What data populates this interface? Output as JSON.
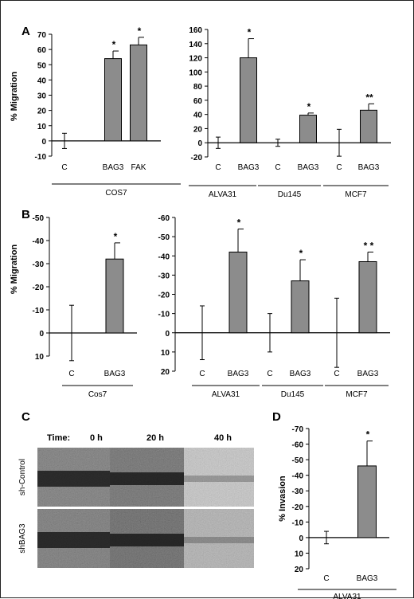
{
  "panel_labels": [
    "A",
    "B",
    "C",
    "D"
  ],
  "colors": {
    "bar": "#8c8c8c",
    "stroke": "#000000",
    "background": "#ffffff"
  },
  "chart_data": [
    {
      "id": "A-left",
      "panel": "A",
      "type": "bar",
      "ylabel": "% Migration",
      "ylim": [
        -10,
        70
      ],
      "yticks": [
        -10,
        0,
        10,
        20,
        30,
        40,
        50,
        60,
        70
      ],
      "ytick_labels": [
        "-10",
        "0",
        "10",
        "20",
        "30",
        "40",
        "50",
        "60",
        "70"
      ],
      "categories": [
        "C",
        "BAG3",
        "FAK"
      ],
      "values": [
        0,
        54,
        63
      ],
      "errors": [
        5,
        5,
        5
      ],
      "significance": [
        "",
        "*",
        "*"
      ],
      "groups": [
        {
          "label": "COS7",
          "span": [
            0,
            2
          ]
        }
      ]
    },
    {
      "id": "A-right",
      "panel": "A",
      "type": "bar",
      "ylabel": "",
      "ylim": [
        -20,
        160
      ],
      "yticks": [
        -20,
        0,
        20,
        40,
        60,
        80,
        100,
        120,
        140,
        160
      ],
      "ytick_labels": [
        "-20",
        "0",
        "20",
        "40",
        "60",
        "80",
        "100",
        "120",
        "140",
        "160"
      ],
      "categories": [
        "C",
        "BAG3",
        "C",
        "BAG3",
        "C",
        "BAG3"
      ],
      "values": [
        0,
        120,
        0,
        39,
        0,
        46
      ],
      "errors": [
        8,
        27,
        5,
        3,
        19,
        9
      ],
      "significance": [
        "",
        "*",
        "",
        "*",
        "",
        "**"
      ],
      "groups": [
        {
          "label": "ALVA31",
          "span": [
            0,
            1
          ]
        },
        {
          "label": "Du145",
          "span": [
            2,
            3
          ]
        },
        {
          "label": "MCF7",
          "span": [
            4,
            5
          ]
        }
      ]
    },
    {
      "id": "B-left",
      "panel": "B",
      "type": "bar",
      "ylabel": "% Migration",
      "ylim": [
        10,
        -50
      ],
      "yticks": [
        10,
        0,
        -10,
        -20,
        -30,
        -40,
        -50
      ],
      "ytick_labels": [
        "10",
        "0",
        "-10",
        "-20",
        "-30",
        "-40",
        "-50"
      ],
      "categories": [
        "C",
        "BAG3"
      ],
      "values": [
        0,
        -32
      ],
      "errors": [
        12,
        7
      ],
      "significance": [
        "",
        "*"
      ],
      "groups": [
        {
          "label": "Cos7",
          "span": [
            0,
            1
          ]
        }
      ]
    },
    {
      "id": "B-right",
      "panel": "B",
      "type": "bar",
      "ylabel": "",
      "ylim": [
        20,
        -60
      ],
      "yticks": [
        20,
        10,
        0,
        -10,
        -20,
        -30,
        -40,
        -50,
        -60
      ],
      "ytick_labels": [
        "20",
        "10",
        "0",
        "-10",
        "-20",
        "-30",
        "-40",
        "-50",
        "-60"
      ],
      "categories": [
        "C",
        "BAG3",
        "C",
        "BAG3",
        "C",
        "BAG3"
      ],
      "values": [
        0,
        -42,
        0,
        -27,
        0,
        -37
      ],
      "errors": [
        14,
        12,
        10,
        11,
        18,
        5
      ],
      "significance": [
        "",
        "*",
        "",
        "*",
        "",
        "* *"
      ],
      "groups": [
        {
          "label": "ALVA31",
          "span": [
            0,
            1
          ]
        },
        {
          "label": "Du145",
          "span": [
            2,
            3
          ]
        },
        {
          "label": "MCF7",
          "span": [
            4,
            5
          ]
        }
      ]
    },
    {
      "id": "D",
      "panel": "D",
      "type": "bar",
      "ylabel": "% Invasion",
      "ylim": [
        20,
        -70
      ],
      "yticks": [
        20,
        10,
        0,
        -10,
        -20,
        -30,
        -40,
        -50,
        -60,
        -70
      ],
      "ytick_labels": [
        "20",
        "10",
        "0",
        "-10",
        "-20",
        "-30",
        "-40",
        "-50",
        "-60",
        "-70"
      ],
      "categories": [
        "C",
        "BAG3"
      ],
      "values": [
        0,
        -46
      ],
      "errors": [
        4,
        16
      ],
      "significance": [
        "",
        "*"
      ],
      "groups": [
        {
          "label": "ALVA31",
          "span": [
            0,
            1
          ]
        }
      ]
    }
  ],
  "panel_c": {
    "time_label": "Time:",
    "columns": [
      "0 h",
      "20 h",
      "40 h"
    ],
    "rows": [
      "sh-Control",
      "shBAG3"
    ]
  }
}
